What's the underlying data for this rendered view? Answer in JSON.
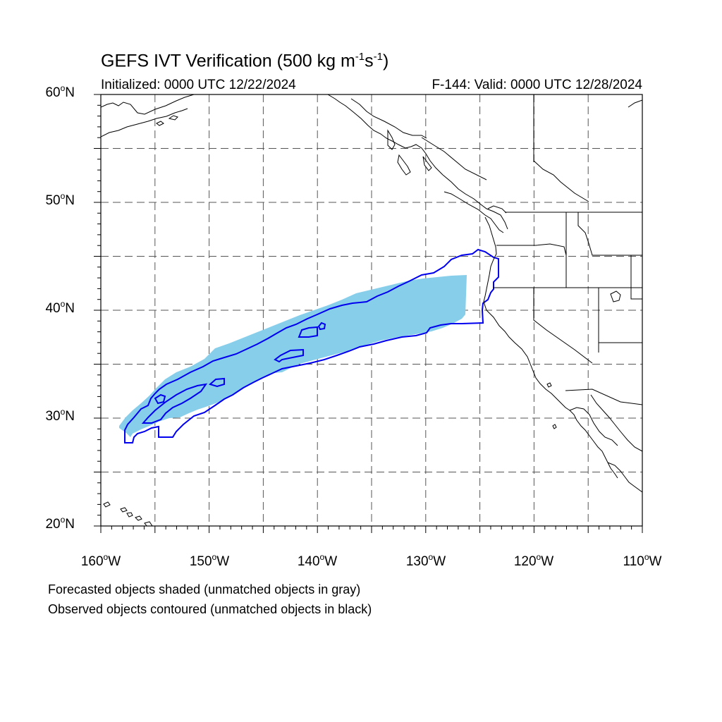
{
  "title": {
    "main": "GEFS IVT Verification (500 kg m",
    "exp1": "-1",
    "mid": "s",
    "exp2": "-1",
    "close": ")"
  },
  "initialized": "Initialized: 0000 UTC 12/22/2024",
  "valid": "F-144: Valid: 0000 UTC 12/28/2024",
  "lat_labels": [
    {
      "num": "60",
      "hem": "N"
    },
    {
      "num": "50",
      "hem": "N"
    },
    {
      "num": "40",
      "hem": "N"
    },
    {
      "num": "30",
      "hem": "N"
    },
    {
      "num": "20",
      "hem": "N"
    }
  ],
  "lon_labels": [
    {
      "num": "160",
      "hem": "W"
    },
    {
      "num": "150",
      "hem": "W"
    },
    {
      "num": "140",
      "hem": "W"
    },
    {
      "num": "130",
      "hem": "W"
    },
    {
      "num": "120",
      "hem": "W"
    },
    {
      "num": "110",
      "hem": "W"
    }
  ],
  "notes": [
    "Forecasted objects shaded (unmatched objects in gray)",
    "Observed objects contoured (unmatched objects in black)"
  ],
  "map": {
    "lon_range": [
      -160,
      -110
    ],
    "lat_range": [
      20,
      60
    ],
    "grid_spacing_deg": 5,
    "grid_style": "dashed",
    "forecast_object_color": "#87CEEB",
    "observed_object_color": "#0000EE",
    "coastline_color": "#000000",
    "projection": "cylindrical equidistant"
  }
}
